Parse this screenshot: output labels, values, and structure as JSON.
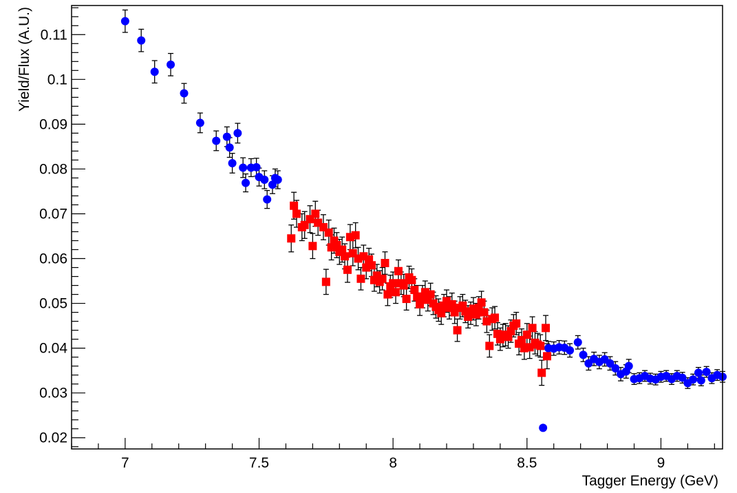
{
  "chart_data": {
    "type": "scatter",
    "title": "",
    "xlabel": "Tagger Energy (GeV)",
    "ylabel": "Yield/Flux (A.U.)",
    "xlim": [
      6.8,
      9.23
    ],
    "ylim": [
      0.0175,
      0.1165
    ],
    "x_ticks": [
      7,
      7.5,
      8,
      8.5,
      9
    ],
    "x_tick_labels": [
      "7",
      "7.5",
      "8",
      "8.5",
      "9"
    ],
    "y_ticks": [
      0.02,
      0.03,
      0.04,
      0.05,
      0.06,
      0.07,
      0.08,
      0.09,
      0.1,
      0.11
    ],
    "y_tick_labels": [
      "0.02",
      "0.03",
      "0.04",
      "0.05",
      "0.06",
      "0.07",
      "0.08",
      "0.09",
      "0.1",
      "0.11"
    ],
    "grid": false,
    "legend": "none",
    "series": [
      {
        "marker": "circle",
        "color": "#0000ff",
        "points": [
          [
            7.0,
            0.113,
            0.0025
          ],
          [
            7.06,
            0.1087,
            0.0025
          ],
          [
            7.11,
            0.1017,
            0.0025
          ],
          [
            7.17,
            0.1033,
            0.0025
          ],
          [
            7.22,
            0.0969,
            0.0022
          ],
          [
            7.28,
            0.0903,
            0.0022
          ],
          [
            7.34,
            0.0863,
            0.0022
          ],
          [
            7.38,
            0.0872,
            0.0022
          ],
          [
            7.39,
            0.0848,
            0.0022
          ],
          [
            7.4,
            0.0813,
            0.0022
          ],
          [
            7.42,
            0.088,
            0.0022
          ],
          [
            7.44,
            0.0803,
            0.0022
          ],
          [
            7.45,
            0.0769,
            0.002
          ],
          [
            7.47,
            0.0803,
            0.002
          ],
          [
            7.49,
            0.0804,
            0.002
          ],
          [
            7.5,
            0.0782,
            0.002
          ],
          [
            7.52,
            0.0776,
            0.002
          ],
          [
            7.53,
            0.0732,
            0.002
          ],
          [
            7.55,
            0.0765,
            0.002
          ],
          [
            7.56,
            0.078,
            0.002
          ],
          [
            7.57,
            0.0776,
            0.002
          ],
          [
            8.56,
            0.0222,
            0.0
          ],
          [
            8.58,
            0.04,
            0.0015
          ],
          [
            8.6,
            0.0399,
            0.0015
          ],
          [
            8.62,
            0.0402,
            0.0015
          ],
          [
            8.64,
            0.0401,
            0.0015
          ],
          [
            8.66,
            0.0395,
            0.0015
          ],
          [
            8.69,
            0.0413,
            0.0015
          ],
          [
            8.71,
            0.0385,
            0.0015
          ],
          [
            8.73,
            0.0366,
            0.0015
          ],
          [
            8.75,
            0.0376,
            0.0015
          ],
          [
            8.77,
            0.0369,
            0.0015
          ],
          [
            8.79,
            0.0375,
            0.0015
          ],
          [
            8.81,
            0.0366,
            0.0015
          ],
          [
            8.83,
            0.0355,
            0.0015
          ],
          [
            8.85,
            0.0342,
            0.0015
          ],
          [
            8.87,
            0.0348,
            0.0015
          ],
          [
            8.88,
            0.036,
            0.0015
          ],
          [
            8.9,
            0.0331,
            0.0012
          ],
          [
            8.92,
            0.0333,
            0.0012
          ],
          [
            8.94,
            0.0338,
            0.0012
          ],
          [
            8.96,
            0.0332,
            0.0012
          ],
          [
            8.98,
            0.033,
            0.0012
          ],
          [
            9.0,
            0.0336,
            0.0012
          ],
          [
            9.02,
            0.0338,
            0.0012
          ],
          [
            9.04,
            0.0331,
            0.0012
          ],
          [
            9.06,
            0.0338,
            0.0012
          ],
          [
            9.08,
            0.0334,
            0.0012
          ],
          [
            9.1,
            0.0322,
            0.0012
          ],
          [
            9.12,
            0.033,
            0.0012
          ],
          [
            9.14,
            0.0345,
            0.0012
          ],
          [
            9.15,
            0.0328,
            0.0012
          ],
          [
            9.17,
            0.0347,
            0.0012
          ],
          [
            9.19,
            0.0333,
            0.0012
          ],
          [
            9.21,
            0.034,
            0.0012
          ],
          [
            9.23,
            0.0336,
            0.0012
          ]
        ]
      },
      {
        "marker": "square",
        "color": "#ff0000",
        "points": [
          [
            7.62,
            0.0645,
            0.003
          ],
          [
            7.63,
            0.0718,
            0.003
          ],
          [
            7.64,
            0.07,
            0.003
          ],
          [
            7.66,
            0.067,
            0.003
          ],
          [
            7.67,
            0.0675,
            0.003
          ],
          [
            7.69,
            0.0688,
            0.003
          ],
          [
            7.7,
            0.0628,
            0.0028
          ],
          [
            7.71,
            0.07,
            0.0028
          ],
          [
            7.72,
            0.068,
            0.0028
          ],
          [
            7.74,
            0.067,
            0.0028
          ],
          [
            7.75,
            0.0548,
            0.0028
          ],
          [
            7.76,
            0.0658,
            0.0028
          ],
          [
            7.77,
            0.0625,
            0.0028
          ],
          [
            7.78,
            0.064,
            0.0028
          ],
          [
            7.79,
            0.063,
            0.0028
          ],
          [
            7.8,
            0.0615,
            0.0028
          ],
          [
            7.81,
            0.062,
            0.0028
          ],
          [
            7.82,
            0.0605,
            0.0028
          ],
          [
            7.83,
            0.0575,
            0.0028
          ],
          [
            7.84,
            0.0648,
            0.0028
          ],
          [
            7.85,
            0.0612,
            0.0028
          ],
          [
            7.86,
            0.0652,
            0.0028
          ],
          [
            7.87,
            0.06,
            0.0025
          ],
          [
            7.88,
            0.0555,
            0.0025
          ],
          [
            7.89,
            0.0605,
            0.0025
          ],
          [
            7.9,
            0.058,
            0.0025
          ],
          [
            7.91,
            0.0598,
            0.0025
          ],
          [
            7.92,
            0.0585,
            0.0025
          ],
          [
            7.93,
            0.0552,
            0.0025
          ],
          [
            7.94,
            0.0562,
            0.0025
          ],
          [
            7.95,
            0.0548,
            0.0025
          ],
          [
            7.96,
            0.0555,
            0.0025
          ],
          [
            7.97,
            0.059,
            0.0025
          ],
          [
            7.98,
            0.052,
            0.0025
          ],
          [
            7.99,
            0.0538,
            0.0025
          ],
          [
            8.0,
            0.0545,
            0.0025
          ],
          [
            8.01,
            0.0525,
            0.0025
          ],
          [
            8.02,
            0.0572,
            0.0025
          ],
          [
            8.03,
            0.0545,
            0.0025
          ],
          [
            8.04,
            0.054,
            0.0025
          ],
          [
            8.05,
            0.051,
            0.0025
          ],
          [
            8.06,
            0.0558,
            0.0025
          ],
          [
            8.07,
            0.0552,
            0.0025
          ],
          [
            8.08,
            0.053,
            0.0025
          ],
          [
            8.09,
            0.0515,
            0.0025
          ],
          [
            8.1,
            0.0498,
            0.0025
          ],
          [
            8.11,
            0.0515,
            0.0025
          ],
          [
            8.12,
            0.0525,
            0.0025
          ],
          [
            8.13,
            0.0508,
            0.0025
          ],
          [
            8.14,
            0.052,
            0.0025
          ],
          [
            8.15,
            0.05,
            0.0025
          ],
          [
            8.16,
            0.0492,
            0.0025
          ],
          [
            8.17,
            0.0485,
            0.0025
          ],
          [
            8.18,
            0.0478,
            0.0025
          ],
          [
            8.19,
            0.0495,
            0.0025
          ],
          [
            8.2,
            0.0505,
            0.0025
          ],
          [
            8.21,
            0.049,
            0.0025
          ],
          [
            8.22,
            0.0498,
            0.0025
          ],
          [
            8.23,
            0.048,
            0.0025
          ],
          [
            8.24,
            0.044,
            0.0025
          ],
          [
            8.25,
            0.049,
            0.0025
          ],
          [
            8.26,
            0.0495,
            0.0025
          ],
          [
            8.27,
            0.0482,
            0.0025
          ],
          [
            8.28,
            0.047,
            0.0025
          ],
          [
            8.29,
            0.0478,
            0.0025
          ],
          [
            8.3,
            0.0488,
            0.0025
          ],
          [
            8.31,
            0.0475,
            0.0025
          ],
          [
            8.32,
            0.049,
            0.0025
          ],
          [
            8.33,
            0.0502,
            0.0025
          ],
          [
            8.34,
            0.048,
            0.0025
          ],
          [
            8.35,
            0.046,
            0.0025
          ],
          [
            8.36,
            0.0405,
            0.0025
          ],
          [
            8.37,
            0.0465,
            0.0025
          ],
          [
            8.38,
            0.0468,
            0.0025
          ],
          [
            8.39,
            0.0432,
            0.0025
          ],
          [
            8.4,
            0.042,
            0.0025
          ],
          [
            8.41,
            0.0428,
            0.0025
          ],
          [
            8.42,
            0.043,
            0.0025
          ],
          [
            8.43,
            0.0425,
            0.0025
          ],
          [
            8.44,
            0.0438,
            0.0025
          ],
          [
            8.45,
            0.045,
            0.0025
          ],
          [
            8.46,
            0.0455,
            0.0025
          ],
          [
            8.47,
            0.041,
            0.0025
          ],
          [
            8.48,
            0.0418,
            0.0025
          ],
          [
            8.49,
            0.04,
            0.0025
          ],
          [
            8.5,
            0.043,
            0.0025
          ],
          [
            8.51,
            0.0402,
            0.0025
          ],
          [
            8.52,
            0.0445,
            0.0025
          ],
          [
            8.53,
            0.0412,
            0.0025
          ],
          [
            8.54,
            0.0408,
            0.0025
          ],
          [
            8.55,
            0.0405,
            0.0025
          ],
          [
            8.555,
            0.0345,
            0.0028
          ],
          [
            8.57,
            0.0445,
            0.0028
          ],
          [
            8.575,
            0.0382,
            0.0028
          ]
        ]
      }
    ]
  }
}
